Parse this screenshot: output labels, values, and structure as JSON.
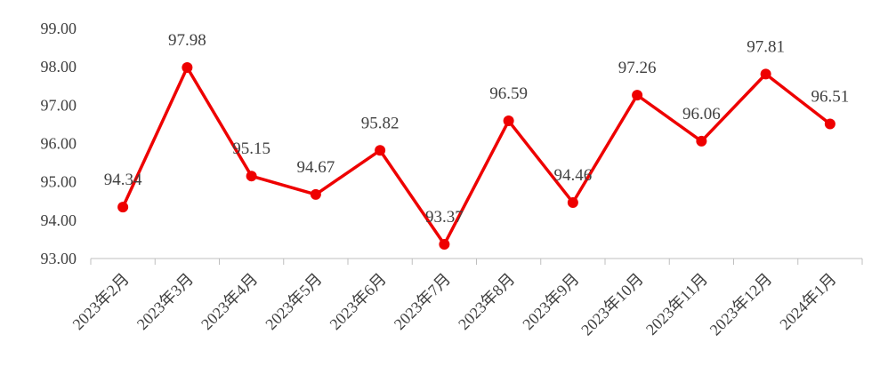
{
  "chart_data": {
    "type": "line",
    "title": "",
    "xlabel": "",
    "ylabel": "",
    "ylim": [
      93.0,
      99.0
    ],
    "y_ticks": [
      "93.00",
      "94.00",
      "95.00",
      "96.00",
      "97.00",
      "98.00",
      "99.00"
    ],
    "grid": false,
    "legend": "none",
    "categories": [
      "2023年2月",
      "2023年3月",
      "2023年4月",
      "2023年5月",
      "2023年6月",
      "2023年7月",
      "2023年8月",
      "2023年9月",
      "2023年10月",
      "2023年11月",
      "2023年12月",
      "2024年1月"
    ],
    "series": [
      {
        "values": [
          94.34,
          97.98,
          95.15,
          94.67,
          95.82,
          93.37,
          96.59,
          94.46,
          97.26,
          96.06,
          97.81,
          96.51
        ],
        "labels": [
          "94.34",
          "97.98",
          "95.15",
          "94.67",
          "95.82",
          "93.37",
          "96.59",
          "94.46",
          "97.26",
          "96.06",
          "97.81",
          "96.51"
        ],
        "color": "#ee0000"
      }
    ]
  }
}
